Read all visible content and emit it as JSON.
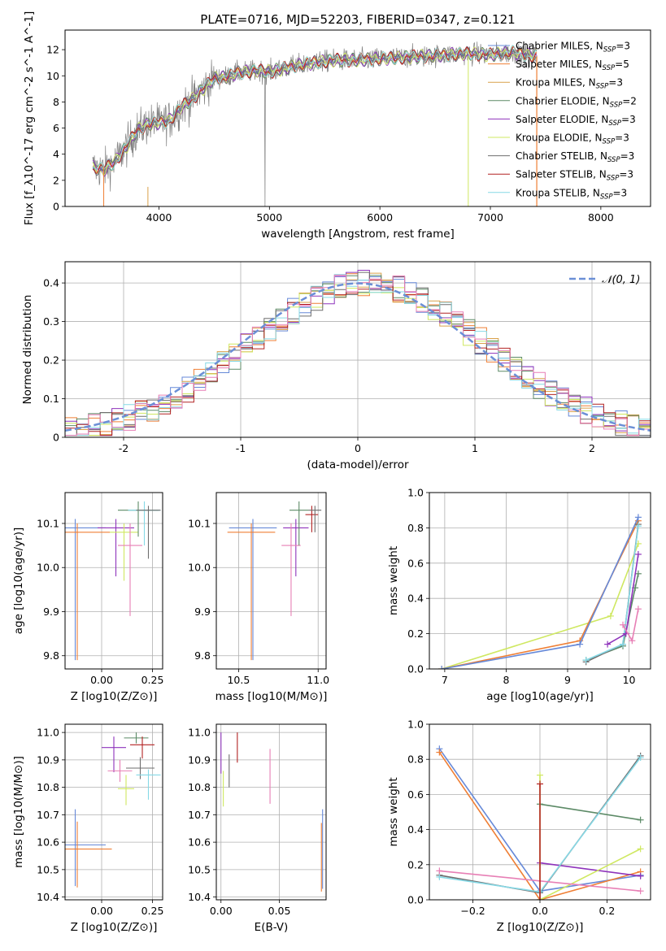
{
  "figure": {
    "title": "PLATE=0716, MJD=52203, FIBERID=0347, z=0.121"
  },
  "colors": {
    "chabrier_miles": "#6689d8",
    "salpeter_miles": "#ef7f35",
    "kroupa_miles": "#d9a14a",
    "chabrier_elodie": "#5c8a66",
    "salpeter_elodie": "#8e33bb",
    "kroupa_elodie": "#cfe861",
    "chabrier_stelib": "#6e6e6e",
    "salpeter_stelib": "#b22222",
    "kroupa_stelib": "#86d9e6",
    "pink": "#e77fb5",
    "normal_curve": "#6b8fd6",
    "data_spectrum": "#808080"
  },
  "chart_data": [
    {
      "id": "spectrum",
      "type": "line",
      "title": "PLATE=0716, MJD=52203, FIBERID=0347, z=0.121",
      "xlabel": "wavelength [Angstrom, rest frame]",
      "ylabel": "Flux [f_λ10^-17 erg cm^-2 s^-1 A^-1]",
      "xlim": [
        3150,
        8450
      ],
      "ylim": [
        0,
        13.5
      ],
      "xticks": [
        4000,
        5000,
        6000,
        7000,
        8000
      ],
      "yticks": [
        0,
        2,
        4,
        6,
        8,
        10,
        12
      ],
      "grid": false,
      "legend_position": "top-right",
      "legend": [
        {
          "label": "Chabrier MILES, N",
          "sub": "SSP",
          "suffix": "=3",
          "color_key": "chabrier_miles"
        },
        {
          "label": "Salpeter MILES, N",
          "sub": "SSP",
          "suffix": "=5",
          "color_key": "salpeter_miles"
        },
        {
          "label": "Kroupa MILES, N",
          "sub": "SSP",
          "suffix": "=3",
          "color_key": "kroupa_miles"
        },
        {
          "label": "Chabrier ELODIE, N",
          "sub": "SSP",
          "suffix": "=2",
          "color_key": "chabrier_elodie"
        },
        {
          "label": "Salpeter ELODIE, N",
          "sub": "SSP",
          "suffix": "=3",
          "color_key": "salpeter_elodie"
        },
        {
          "label": "Kroupa ELODIE, N",
          "sub": "SSP",
          "suffix": "=3",
          "color_key": "kroupa_elodie"
        },
        {
          "label": "Chabrier STELIB, N",
          "sub": "SSP",
          "suffix": "=3",
          "color_key": "chabrier_stelib"
        },
        {
          "label": "Salpeter STELIB, N",
          "sub": "SSP",
          "suffix": "=3",
          "color_key": "salpeter_stelib"
        },
        {
          "label": "Kroupa STELIB, N",
          "sub": "SSP",
          "suffix": "=3",
          "color_key": "kroupa_stelib"
        }
      ],
      "model_continuum": {
        "x": [
          3400,
          3500,
          3600,
          3700,
          3800,
          3900,
          4000,
          4100,
          4200,
          4300,
          4400,
          4500,
          4600,
          4700,
          4800,
          4900,
          5000,
          5200,
          5400,
          5600,
          5800,
          6000,
          6200,
          6400,
          6600,
          6800,
          7000,
          7200,
          7400
        ],
        "y": [
          3.0,
          2.8,
          3.4,
          4.5,
          5.8,
          6.3,
          6.4,
          6.6,
          7.6,
          8.2,
          9.0,
          9.8,
          9.9,
          10.2,
          10.3,
          10.4,
          10.3,
          10.7,
          11.0,
          11.2,
          11.2,
          11.3,
          11.4,
          11.5,
          11.6,
          11.7,
          11.6,
          11.8,
          11.5
        ]
      }
    },
    {
      "id": "residuals",
      "type": "line",
      "xlabel": "(data-model)/error",
      "ylabel": "Normed distribution",
      "xlim": [
        -2.5,
        2.5
      ],
      "ylim": [
        0,
        0.455
      ],
      "xticks": [
        -2,
        -1,
        0,
        1,
        2
      ],
      "yticks": [
        0.0,
        0.1,
        0.2,
        0.3,
        0.4
      ],
      "grid": true,
      "legend_position": "top-right",
      "legend": [
        {
          "label": "𝒩(0, 1)",
          "color_key": "normal_curve",
          "style": "dashed"
        }
      ],
      "series": [
        {
          "name": "𝒩(0, 1)",
          "x_range": [
            -2.5,
            2.5
          ],
          "mean": 0,
          "sd": 1
        }
      ],
      "histogram_series": [
        "chabrier_miles",
        "salpeter_miles",
        "kroupa_miles",
        "chabrier_elodie",
        "salpeter_elodie",
        "kroupa_elodie",
        "chabrier_stelib",
        "salpeter_stelib",
        "kroupa_stelib",
        "pink"
      ]
    },
    {
      "id": "z_age",
      "type": "scatter",
      "xlabel": "Z [log10(Z/Z⊙)]",
      "ylabel": "age [log10(age/yr)]",
      "xlim": [
        -0.18,
        0.3
      ],
      "ylim": [
        9.77,
        10.17
      ],
      "xticks": [
        "0.00",
        "0.25"
      ],
      "xtick_values": [
        0.0,
        0.25
      ],
      "yticks": [
        "9.8",
        "9.9",
        "10.0",
        "10.1"
      ],
      "ytick_values": [
        9.8,
        9.9,
        10.0,
        10.1
      ],
      "grid": true,
      "points": [
        {
          "x": -0.13,
          "y": 10.09,
          "xerr": 0.15,
          "yerr_lo": 0.3,
          "yerr_hi": 0.02,
          "c": "chabrier_miles"
        },
        {
          "x": -0.12,
          "y": 10.08,
          "xerr": 0.16,
          "yerr_lo": 0.29,
          "yerr_hi": 0.02,
          "c": "salpeter_miles"
        },
        {
          "x": 0.07,
          "y": 10.09,
          "xerr": 0.09,
          "yerr_lo": 0.11,
          "yerr_hi": 0.02,
          "c": "salpeter_elodie"
        },
        {
          "x": 0.11,
          "y": 10.08,
          "xerr": 0.07,
          "yerr_lo": 0.11,
          "yerr_hi": 0.02,
          "c": "kroupa_elodie"
        },
        {
          "x": 0.14,
          "y": 10.05,
          "xerr": 0.06,
          "yerr_lo": 0.16,
          "yerr_hi": 0.05,
          "c": "pink"
        },
        {
          "x": 0.18,
          "y": 10.13,
          "xerr": 0.1,
          "yerr_lo": 0.06,
          "yerr_hi": 0.02,
          "c": "chabrier_elodie"
        },
        {
          "x": 0.21,
          "y": 10.13,
          "xerr": 0.08,
          "yerr_lo": 0.08,
          "yerr_hi": 0.02,
          "c": "kroupa_stelib"
        },
        {
          "x": 0.23,
          "y": 10.13,
          "xerr": 0.06,
          "yerr_lo": 0.11,
          "yerr_hi": 0.01,
          "c": "chabrier_stelib"
        }
      ]
    },
    {
      "id": "mass_age",
      "type": "scatter",
      "xlabel": "mass [log10(M/M⊙)]",
      "ylabel": "",
      "xlim": [
        10.36,
        11.05
      ],
      "ylim": [
        9.77,
        10.17
      ],
      "xticks": [
        "10.5",
        "11.0"
      ],
      "xtick_values": [
        10.5,
        11.0
      ],
      "yticks": [
        "9.8",
        "9.9",
        "10.0",
        "10.1"
      ],
      "ytick_values": [
        9.8,
        9.9,
        10.0,
        10.1
      ],
      "grid": true,
      "points": [
        {
          "x": 10.59,
          "y": 10.09,
          "xerr": 0.15,
          "yerr_lo": 0.3,
          "yerr_hi": 0.02,
          "c": "chabrier_miles"
        },
        {
          "x": 10.58,
          "y": 10.08,
          "xerr": 0.15,
          "yerr_lo": 0.29,
          "yerr_hi": 0.02,
          "c": "salpeter_miles"
        },
        {
          "x": 10.86,
          "y": 10.09,
          "xerr": 0.08,
          "yerr_lo": 0.11,
          "yerr_hi": 0.02,
          "c": "salpeter_elodie"
        },
        {
          "x": 10.83,
          "y": 10.05,
          "xerr": 0.06,
          "yerr_lo": 0.16,
          "yerr_hi": 0.05,
          "c": "pink"
        },
        {
          "x": 10.88,
          "y": 10.13,
          "xerr": 0.06,
          "yerr_lo": 0.08,
          "yerr_hi": 0.02,
          "c": "chabrier_elodie"
        },
        {
          "x": 10.96,
          "y": 10.12,
          "xerr": 0.04,
          "yerr_lo": 0.04,
          "yerr_hi": 0.02,
          "c": "salpeter_stelib"
        },
        {
          "x": 10.98,
          "y": 10.13,
          "xerr": 0.04,
          "yerr_lo": 0.05,
          "yerr_hi": 0.01,
          "c": "chabrier_stelib"
        }
      ]
    },
    {
      "id": "age_weight",
      "type": "line",
      "xlabel": "age [log10(age/yr)]",
      "ylabel": "mass weight",
      "xlim": [
        6.75,
        10.35
      ],
      "ylim": [
        0.0,
        1.0
      ],
      "xticks": [
        "7",
        "8",
        "9",
        "10"
      ],
      "xtick_values": [
        7,
        8,
        9,
        10
      ],
      "yticks": [
        "0.0",
        "0.2",
        "0.4",
        "0.6",
        "0.8",
        "1.0"
      ],
      "ytick_values": [
        0.0,
        0.2,
        0.4,
        0.6,
        0.8,
        1.0
      ],
      "grid": true,
      "series": [
        {
          "c": "kroupa_elodie",
          "x": [
            6.95,
            9.7,
            10.15
          ],
          "y": [
            0.0,
            0.3,
            0.71
          ]
        },
        {
          "c": "salpeter_miles",
          "x": [
            6.95,
            9.2,
            10.15
          ],
          "y": [
            0.0,
            0.16,
            0.84
          ]
        },
        {
          "c": "chabrier_miles",
          "x": [
            6.95,
            9.2,
            10.15
          ],
          "y": [
            0.0,
            0.14,
            0.86
          ]
        },
        {
          "c": "chabrier_elodie",
          "x": [
            9.3,
            9.9,
            10.1,
            10.15
          ],
          "y": [
            0.05,
            0.13,
            0.46,
            0.54
          ]
        },
        {
          "c": "chabrier_stelib",
          "x": [
            9.3,
            9.9,
            10.15
          ],
          "y": [
            0.04,
            0.14,
            0.82
          ]
        },
        {
          "c": "kroupa_stelib",
          "x": [
            9.3,
            9.9,
            10.15
          ],
          "y": [
            0.05,
            0.14,
            0.81
          ]
        },
        {
          "c": "salpeter_elodie",
          "x": [
            9.65,
            9.95,
            10.15
          ],
          "y": [
            0.14,
            0.2,
            0.65
          ]
        },
        {
          "c": "pink",
          "x": [
            9.9,
            10.05,
            10.15
          ],
          "y": [
            0.25,
            0.16,
            0.34
          ]
        }
      ]
    },
    {
      "id": "z_mass",
      "type": "scatter",
      "xlabel": "Z [log10(Z/Z⊙)]",
      "ylabel": "mass [log10(M/M⊙)]",
      "xlim": [
        -0.18,
        0.3
      ],
      "ylim": [
        10.39,
        11.03
      ],
      "xticks": [
        "0.00",
        "0.25"
      ],
      "xtick_values": [
        0.0,
        0.25
      ],
      "yticks": [
        "10.4",
        "10.5",
        "10.6",
        "10.7",
        "10.8",
        "10.9",
        "11.0"
      ],
      "ytick_values": [
        10.4,
        10.5,
        10.6,
        10.7,
        10.8,
        10.9,
        11.0
      ],
      "grid": true,
      "points": [
        {
          "x": -0.13,
          "y": 10.59,
          "xerr": 0.15,
          "yerr_lo": 0.15,
          "yerr_hi": 0.13,
          "c": "chabrier_miles"
        },
        {
          "x": -0.12,
          "y": 10.575,
          "xerr": 0.17,
          "yerr_lo": 0.14,
          "yerr_hi": 0.1,
          "c": "salpeter_miles"
        },
        {
          "x": 0.06,
          "y": 10.945,
          "xerr": 0.06,
          "yerr_lo": 0.09,
          "yerr_hi": 0.04,
          "c": "salpeter_elodie"
        },
        {
          "x": 0.09,
          "y": 10.86,
          "xerr": 0.06,
          "yerr_lo": 0.04,
          "yerr_hi": 0.04,
          "c": "pink"
        },
        {
          "x": 0.12,
          "y": 10.795,
          "xerr": 0.04,
          "yerr_lo": 0.06,
          "yerr_hi": 0.05,
          "c": "kroupa_elodie"
        },
        {
          "x": 0.17,
          "y": 10.98,
          "xerr": 0.06,
          "yerr_lo": 0.02,
          "yerr_hi": 0.02,
          "c": "chabrier_elodie"
        },
        {
          "x": 0.2,
          "y": 10.955,
          "xerr": 0.06,
          "yerr_lo": 0.05,
          "yerr_hi": 0.03,
          "c": "salpeter_stelib"
        },
        {
          "x": 0.19,
          "y": 10.87,
          "xerr": 0.07,
          "yerr_lo": 0.04,
          "yerr_hi": 0.04,
          "c": "chabrier_stelib"
        },
        {
          "x": 0.23,
          "y": 10.845,
          "xerr": 0.06,
          "yerr_lo": 0.09,
          "yerr_hi": 0.02,
          "c": "kroupa_stelib"
        }
      ]
    },
    {
      "id": "ebv_mass",
      "type": "scatter",
      "xlabel": "E(B-V)",
      "ylabel": "",
      "xlim": [
        -0.004,
        0.09
      ],
      "ylim": [
        10.39,
        11.03
      ],
      "xticks": [
        "0.00",
        "0.05"
      ],
      "xtick_values": [
        0.0,
        0.05
      ],
      "yticks": [
        "10.4",
        "10.5",
        "10.6",
        "10.7",
        "10.8",
        "10.9",
        "11.0"
      ],
      "ytick_values": [
        10.4,
        10.5,
        10.6,
        10.7,
        10.8,
        10.9,
        11.0
      ],
      "grid": true,
      "points": [
        {
          "x": 0.0,
          "y": 10.94,
          "xerr": 0,
          "yerr_lo": 0.09,
          "yerr_hi": 0.06,
          "c": "salpeter_elodie"
        },
        {
          "x": 0.002,
          "y": 10.8,
          "xerr": 0,
          "yerr_lo": 0.07,
          "yerr_hi": 0.06,
          "c": "kroupa_elodie"
        },
        {
          "x": 0.007,
          "y": 10.86,
          "xerr": 0,
          "yerr_lo": 0.06,
          "yerr_hi": 0.06,
          "c": "chabrier_stelib"
        },
        {
          "x": 0.014,
          "y": 10.94,
          "xerr": 0,
          "yerr_lo": 0.05,
          "yerr_hi": 0.06,
          "c": "salpeter_stelib"
        },
        {
          "x": 0.042,
          "y": 10.84,
          "xerr": 0,
          "yerr_lo": 0.1,
          "yerr_hi": 0.1,
          "c": "pink"
        },
        {
          "x": 0.087,
          "y": 10.59,
          "xerr": 0,
          "yerr_lo": 0.16,
          "yerr_hi": 0.13,
          "c": "chabrier_miles"
        },
        {
          "x": 0.086,
          "y": 10.57,
          "xerr": 0,
          "yerr_lo": 0.15,
          "yerr_hi": 0.1,
          "c": "salpeter_miles"
        }
      ]
    },
    {
      "id": "z_weight",
      "type": "line",
      "xlabel": "Z [log10(Z/Z⊙)]",
      "ylabel": "mass weight",
      "xlim": [
        -0.33,
        0.33
      ],
      "ylim": [
        0.0,
        1.0
      ],
      "xticks": [
        "−0.2",
        "0.0",
        "0.2"
      ],
      "xtick_values": [
        -0.2,
        0.0,
        0.2
      ],
      "yticks": [
        "0.0",
        "0.2",
        "0.4",
        "0.6",
        "0.8",
        "1.0"
      ],
      "ytick_values": [
        0.0,
        0.2,
        0.4,
        0.6,
        0.8,
        1.0
      ],
      "grid": true,
      "series": [
        {
          "c": "chabrier_miles",
          "x": [
            -0.3,
            0.0,
            0.3
          ],
          "y": [
            0.86,
            0.05,
            0.14
          ]
        },
        {
          "c": "salpeter_miles",
          "x": [
            -0.3,
            0.0,
            0.3
          ],
          "y": [
            0.84,
            0.0,
            0.16
          ]
        },
        {
          "c": "chabrier_elodie",
          "x": [
            0.0,
            0.3
          ],
          "y": [
            0.545,
            0.455
          ]
        },
        {
          "c": "salpeter_elodie",
          "x": [
            0.0,
            0.3
          ],
          "y": [
            0.21,
            0.135
          ]
        },
        {
          "c": "kroupa_elodie",
          "x": [
            0.0,
            0.0,
            0.3
          ],
          "y": [
            0.71,
            0.0,
            0.29
          ]
        },
        {
          "c": "chabrier_stelib",
          "x": [
            -0.3,
            0.0,
            0.3
          ],
          "y": [
            0.14,
            0.04,
            0.82
          ]
        },
        {
          "c": "kroupa_stelib",
          "x": [
            -0.3,
            0.0,
            0.3
          ],
          "y": [
            0.13,
            0.045,
            0.81
          ]
        },
        {
          "c": "pink",
          "x": [
            -0.3,
            0.3
          ],
          "y": [
            0.165,
            0.05
          ]
        },
        {
          "c": "salpeter_stelib",
          "x": [
            0.0,
            0.0
          ],
          "y": [
            0.0,
            0.66
          ]
        }
      ]
    }
  ]
}
